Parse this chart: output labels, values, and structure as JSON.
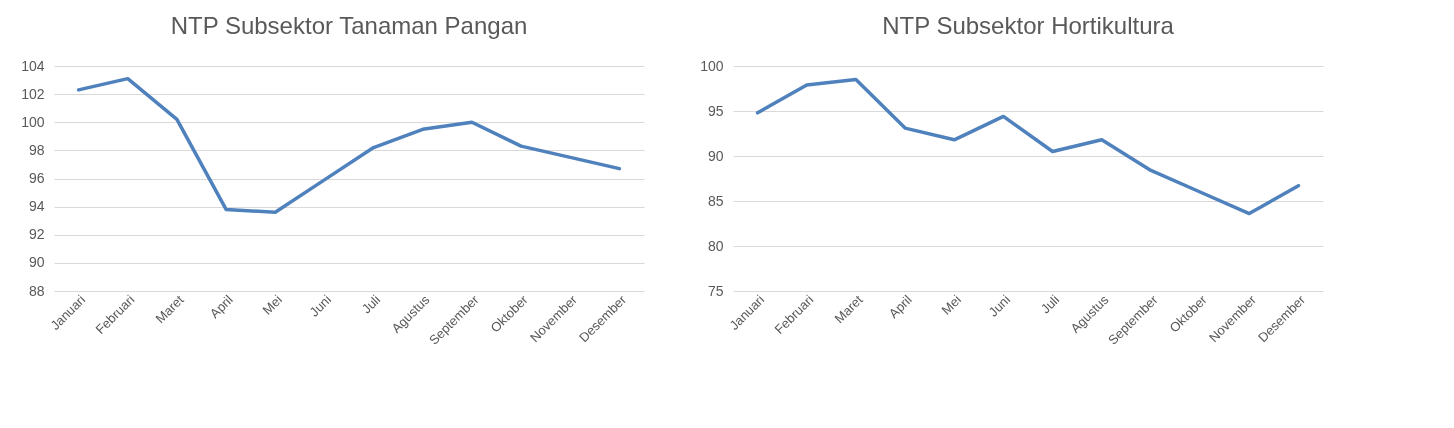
{
  "chart_data": [
    {
      "type": "line",
      "title": "NTP Subsektor Tanaman Pangan",
      "categories": [
        "Januari",
        "Februari",
        "Maret",
        "April",
        "Mei",
        "Juni",
        "Juli",
        "Agustus",
        "September",
        "Oktober",
        "November",
        "Desember"
      ],
      "series": [
        {
          "color": "#4f81bd",
          "values": [
            102.3,
            103.1,
            100.2,
            93.8,
            93.6,
            95.9,
            98.2,
            99.5,
            100.0,
            98.3,
            97.5,
            96.7
          ]
        }
      ],
      "ylim": [
        88,
        104
      ],
      "yticks": [
        88,
        90,
        92,
        94,
        96,
        98,
        100,
        102,
        104
      ],
      "grid": "y"
    },
    {
      "type": "line",
      "title": "NTP Subsektor Hortikultura",
      "categories": [
        "Januari",
        "Februari",
        "Maret",
        "April",
        "Mei",
        "Juni",
        "Juli",
        "Agustus",
        "September",
        "Oktober",
        "November",
        "Desember"
      ],
      "series": [
        {
          "color": "#4f81bd",
          "values": [
            94.8,
            97.9,
            98.5,
            93.1,
            91.8,
            94.4,
            90.5,
            91.8,
            88.4,
            86.0,
            83.6,
            86.7
          ]
        }
      ],
      "ylim": [
        75,
        100
      ],
      "yticks": [
        75,
        80,
        85,
        90,
        95,
        100
      ],
      "grid": "y"
    }
  ]
}
